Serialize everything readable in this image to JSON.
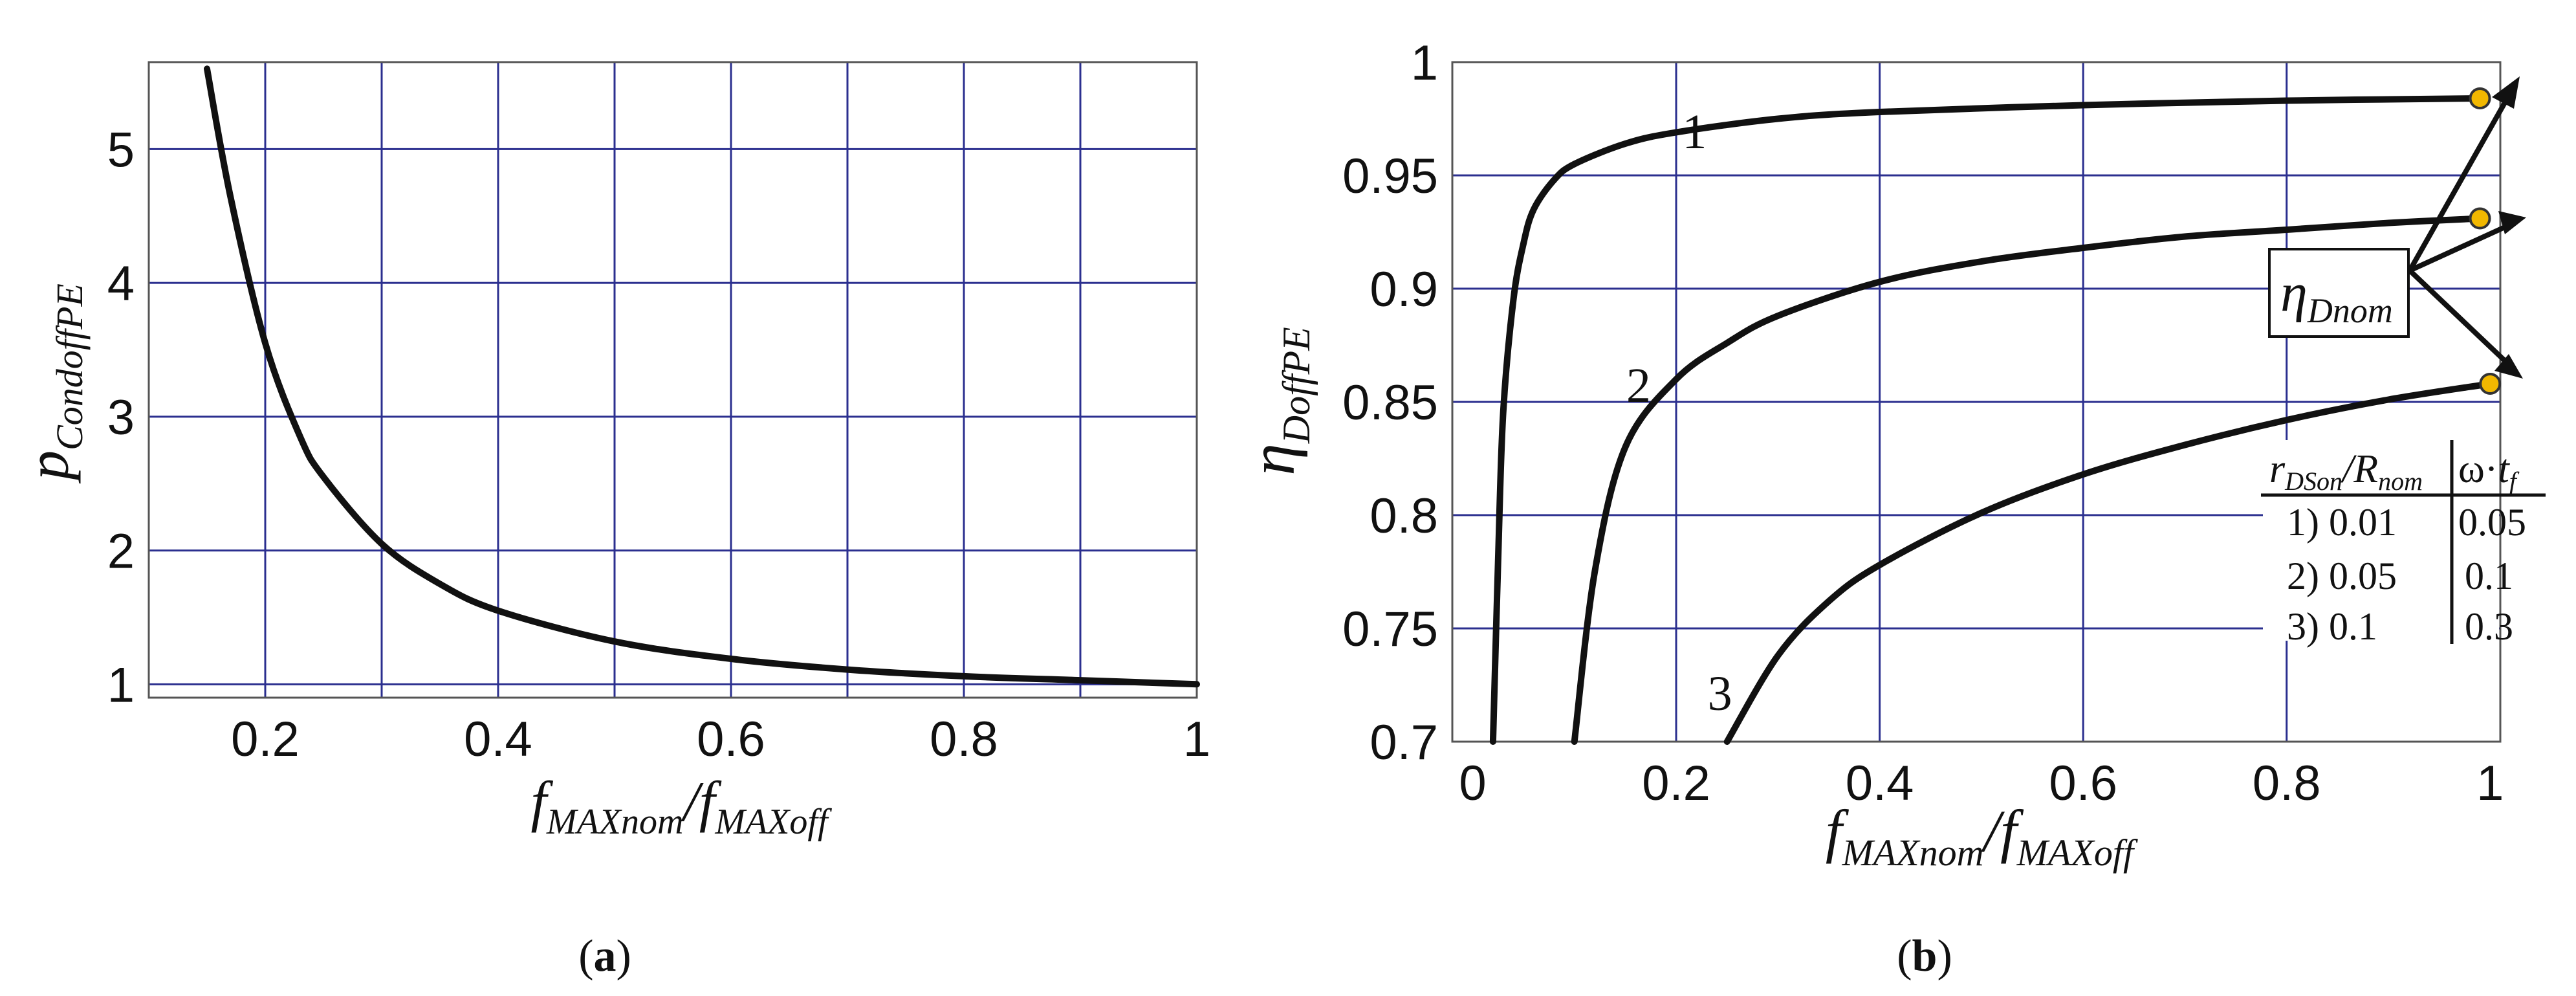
{
  "chart_data": [
    {
      "type": "line",
      "panel_label": "a",
      "xlabel": "f_MAXnom/f_MAXoff",
      "xlabel_main": "f",
      "xlabel_sub1": "MAXnom",
      "xlabel_sub2": "MAXoff",
      "ylabel_main": "p",
      "ylabel_sub": "CondoffPE",
      "xlim": [
        0.1,
        1.0
      ],
      "ylim": [
        0.9,
        5.65
      ],
      "xticks": [
        0.2,
        0.4,
        0.6,
        0.8,
        1.0
      ],
      "xtick_labels": [
        "0.2",
        "0.4",
        "0.6",
        "0.8",
        "1"
      ],
      "xgrid": [
        0.2,
        0.3,
        0.4,
        0.5,
        0.6,
        0.7,
        0.8,
        0.9
      ],
      "yticks": [
        1,
        2,
        3,
        4,
        5
      ],
      "ytick_labels": [
        "1",
        "2",
        "3",
        "4",
        "5"
      ],
      "grid": true,
      "series": [
        {
          "x": [
            0.15,
            0.17,
            0.2,
            0.23,
            0.25,
            0.3,
            0.35,
            0.4,
            0.5,
            0.6,
            0.7,
            0.8,
            0.9,
            1.0
          ],
          "values": [
            5.6,
            4.65,
            3.55,
            2.85,
            2.55,
            2.05,
            1.75,
            1.55,
            1.32,
            1.19,
            1.11,
            1.06,
            1.03,
            1.0
          ]
        }
      ]
    },
    {
      "type": "line",
      "panel_label": "b",
      "xlabel": "f_MAXnom/f_MAXoff",
      "xlabel_main": "f",
      "xlabel_sub1": "MAXnom",
      "xlabel_sub2": "MAXoff",
      "ylabel_main": "η",
      "ylabel_sub": "DoffPE",
      "xlim": [
        -0.02,
        1.01
      ],
      "ylim": [
        0.7,
        1.0
      ],
      "xticks": [
        0,
        0.2,
        0.4,
        0.6,
        0.8,
        1.0
      ],
      "xtick_labels": [
        "0",
        "0.2",
        "0.4",
        "0.6",
        "0.8",
        "1"
      ],
      "xgrid": [
        0.2,
        0.4,
        0.6,
        0.8
      ],
      "yticks": [
        0.7,
        0.75,
        0.8,
        0.85,
        0.9,
        0.95,
        1.0
      ],
      "ytick_labels": [
        "0.7",
        "0.75",
        "0.8",
        "0.85",
        "0.9",
        "0.95",
        "1"
      ],
      "grid": true,
      "series": [
        {
          "name": "1",
          "x": [
            0.02,
            0.025,
            0.03,
            0.04,
            0.05,
            0.06,
            0.08,
            0.1,
            0.15,
            0.2,
            0.3,
            0.4,
            0.6,
            0.8,
            0.99
          ],
          "values": [
            0.7,
            0.78,
            0.845,
            0.895,
            0.92,
            0.935,
            0.948,
            0.955,
            0.964,
            0.969,
            0.975,
            0.978,
            0.981,
            0.983,
            0.984
          ]
        },
        {
          "name": "2",
          "x": [
            0.1,
            0.12,
            0.15,
            0.2,
            0.25,
            0.3,
            0.4,
            0.5,
            0.6,
            0.7,
            0.8,
            0.9,
            0.99
          ],
          "values": [
            0.7,
            0.775,
            0.83,
            0.86,
            0.876,
            0.888,
            0.903,
            0.912,
            0.918,
            0.923,
            0.926,
            0.929,
            0.931
          ]
        },
        {
          "name": "3",
          "x": [
            0.25,
            0.3,
            0.35,
            0.4,
            0.5,
            0.6,
            0.7,
            0.8,
            0.9,
            1.0
          ],
          "values": [
            0.7,
            0.738,
            0.762,
            0.778,
            0.801,
            0.818,
            0.831,
            0.842,
            0.851,
            0.858
          ]
        }
      ],
      "nominal_points": [
        {
          "x": 0.99,
          "y": 0.984
        },
        {
          "x": 0.99,
          "y": 0.931
        },
        {
          "x": 1.0,
          "y": 0.858
        }
      ],
      "marker_color": "#f2b800",
      "annotation": {
        "main": "η",
        "sub": "Dnom"
      },
      "table": {
        "header": [
          "r_DSon/R_nom",
          "ω·t_f"
        ],
        "rows": [
          [
            "1) 0.01",
            "0.05"
          ],
          [
            "2) 0.05",
            "0.1"
          ],
          [
            "3) 0.1",
            "0.3"
          ]
        ]
      }
    }
  ]
}
